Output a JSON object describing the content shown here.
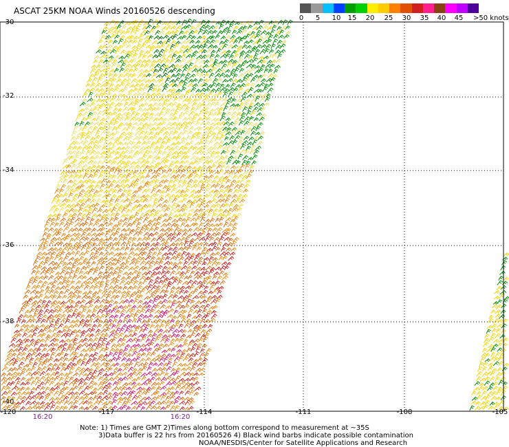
{
  "title": "ASCAT 25KM NOAA Winds 20160526 descending",
  "colorbar": {
    "colors": [
      "#555555",
      "#999999",
      "#00c0ff",
      "#0040ff",
      "#00a000",
      "#00d000",
      "#ffee00",
      "#ffcc00",
      "#ff8000",
      "#e05000",
      "#d02020",
      "#ff2090",
      "#8a4010",
      "#ff00ff",
      "#c000ff",
      "#50009a"
    ],
    "labels": [
      "0",
      "5",
      "10",
      "15",
      "20",
      "25",
      "30",
      "35",
      "40",
      "45"
    ],
    "last_label": ">50 knots"
  },
  "map": {
    "lat_labels": [
      "-30",
      "-32",
      "-34",
      "-36",
      "-38",
      "-40"
    ],
    "lon_labels": [
      "-120",
      "-117",
      "-114",
      "-111",
      "-108",
      "-105"
    ],
    "grid": true
  },
  "times": [
    "16:20",
    "16:20"
  ],
  "notes": [
    "Note: 1) Times are GMT 2)Times along bottom correspond to measurement at ~35S",
    "3)Data buffer is 22 hrs from 20160526 4) Black wind barbs indicate possible contamination",
    "NOAA/NESDIS/Center for Satellite Applications and Research"
  ],
  "swath_colors": {
    "green": "#008c00",
    "dark_green": "#006e00",
    "yellow": "#f0d400",
    "yellow_light": "#e8e060",
    "orange": "#e88a10",
    "dark_orange": "#d86a10",
    "red": "#c82020",
    "magenta": "#d01870",
    "blue": "#0020d0"
  }
}
